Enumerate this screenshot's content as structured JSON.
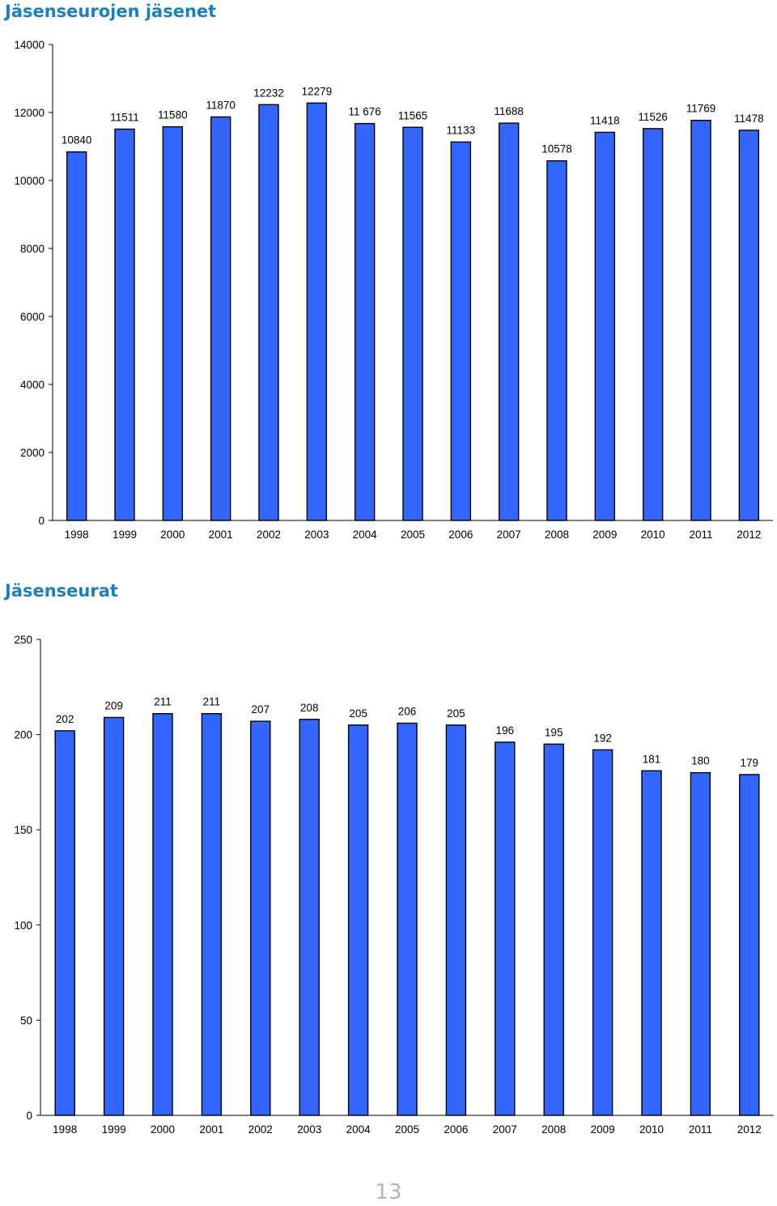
{
  "page": {
    "number": "13"
  },
  "chart_data": [
    {
      "type": "bar",
      "title": "Jäsenseurojen jäsenet",
      "categories": [
        "1998",
        "1999",
        "2000",
        "2001",
        "2002",
        "2003",
        "2004",
        "2005",
        "2006",
        "2007",
        "2008",
        "2009",
        "2010",
        "2011",
        "2012"
      ],
      "values": [
        10840,
        11511,
        11580,
        11870,
        12232,
        12279,
        11676,
        11565,
        11133,
        11688,
        10578,
        11418,
        11526,
        11769,
        11478
      ],
      "data_labels": [
        "10840",
        "11511",
        "11580",
        "11870",
        "12232",
        "12279",
        "11 676",
        "11565",
        "11133",
        "11688",
        "10578",
        "11418",
        "11526",
        "11769",
        "11478"
      ],
      "yticks": [
        "0",
        "2000",
        "4000",
        "6000",
        "8000",
        "10000",
        "12000",
        "14000"
      ],
      "ylim": [
        0,
        14000
      ],
      "bar_color": "#3366ff",
      "grid": false,
      "xlabel": "",
      "ylabel": ""
    },
    {
      "type": "bar",
      "title": "Jäsenseurat",
      "categories": [
        "1998",
        "1999",
        "2000",
        "2001",
        "2002",
        "2003",
        "2004",
        "2005",
        "2006",
        "2007",
        "2008",
        "2009",
        "2010",
        "2011",
        "2012"
      ],
      "values": [
        202,
        209,
        211,
        211,
        207,
        208,
        205,
        206,
        205,
        196,
        195,
        192,
        181,
        180,
        179
      ],
      "data_labels": [
        "202",
        "209",
        "211",
        "211",
        "207",
        "208",
        "205",
        "206",
        "205",
        "196",
        "195",
        "192",
        "181",
        "180",
        "179"
      ],
      "yticks": [
        "0",
        "50",
        "100",
        "150",
        "200",
        "250"
      ],
      "ylim": [
        0,
        250
      ],
      "bar_color": "#3366ff",
      "grid": false,
      "xlabel": "",
      "ylabel": ""
    }
  ]
}
